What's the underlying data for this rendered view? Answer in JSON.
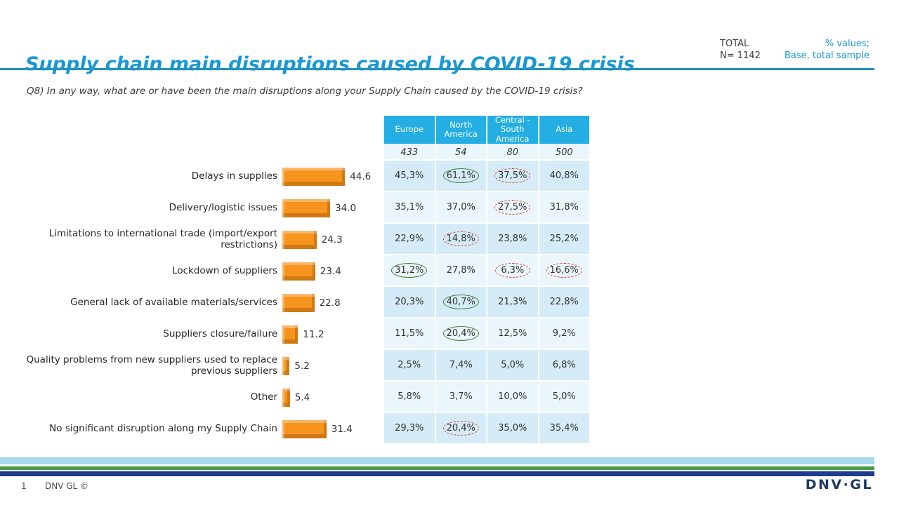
{
  "header": {
    "title": "Supply chain main disruptions caused by COVID-19 crisis",
    "total_label": "TOTAL",
    "total_n": "N= 1142",
    "note_line1": "% values;",
    "note_line2": "Base, total sample"
  },
  "question": "Q8) In any way, what are or have been the main disruptions along your Supply Chain caused by the COVID-19 crisis?",
  "chart_data": {
    "type": "bar",
    "orientation": "horizontal",
    "title": "Supply chain main disruptions caused by COVID-19 crisis",
    "categories": [
      "Delays in supplies",
      "Delivery/logistic issues",
      "Limitations to international trade (import/export restrictions)",
      "Lockdown of suppliers",
      "General lack of available materials/services",
      "Suppliers closure/failure",
      "Quality problems from new suppliers used to replace previous suppliers",
      "Other",
      "No significant disruption along my Supply Chain"
    ],
    "values": [
      44.6,
      34.0,
      24.3,
      23.4,
      22.8,
      11.2,
      5.2,
      5.4,
      31.4
    ],
    "value_labels": [
      "44.6",
      "34.0",
      "24.3",
      "23.4",
      "22.8",
      "11.2",
      "5.2",
      "5.4",
      "31.4"
    ],
    "bar_color": "#F7941E",
    "xlim": [
      0,
      50
    ],
    "grid": false,
    "legend": "none",
    "table": {
      "columns": [
        "Europe",
        "North America",
        "Central - South America",
        "Asia"
      ],
      "base_n": [
        "433",
        "54",
        "80",
        "500"
      ],
      "rows": [
        {
          "cells": [
            "45,3%",
            "61,1%",
            "37,5%",
            "40,8%"
          ],
          "marks": [
            "",
            "green",
            "red",
            ""
          ]
        },
        {
          "cells": [
            "35,1%",
            "37,0%",
            "27,5%",
            "31,8%"
          ],
          "marks": [
            "",
            "",
            "red",
            ""
          ]
        },
        {
          "cells": [
            "22,9%",
            "14,8%",
            "23,8%",
            "25,2%"
          ],
          "marks": [
            "",
            "red",
            "",
            ""
          ]
        },
        {
          "cells": [
            "31,2%",
            "27,8%",
            "6,3%",
            "16,6%"
          ],
          "marks": [
            "green",
            "",
            "red",
            "red"
          ]
        },
        {
          "cells": [
            "20,3%",
            "40,7%",
            "21,3%",
            "22,8%"
          ],
          "marks": [
            "",
            "green",
            "",
            ""
          ]
        },
        {
          "cells": [
            "11,5%",
            "20,4%",
            "12,5%",
            "9,2%"
          ],
          "marks": [
            "",
            "green",
            "",
            ""
          ]
        },
        {
          "cells": [
            "2,5%",
            "7,4%",
            "5,0%",
            "6,8%"
          ],
          "marks": [
            "",
            "",
            "",
            ""
          ]
        },
        {
          "cells": [
            "5,8%",
            "3,7%",
            "10,0%",
            "5,0%"
          ],
          "marks": [
            "",
            "",
            "",
            ""
          ]
        },
        {
          "cells": [
            "29,3%",
            "20,4%",
            "35,0%",
            "35,4%"
          ],
          "marks": [
            "",
            "red",
            "",
            ""
          ]
        }
      ],
      "header_bg": "#25AEE4",
      "band_color_a": "#D5ECF8",
      "band_color_b": "#EAF6FC",
      "base_bg": "#EAF6FC",
      "mark_colors": {
        "green": "#3E7D32",
        "red": "#E03C31"
      }
    }
  },
  "footer": {
    "page_number": "1",
    "brand": "DNV GL ©",
    "logo": "DNV·GL",
    "stripes": {
      "light_blue": "#A5DAEF",
      "green": "#4C9C45",
      "navy": "#1F3C8F"
    }
  }
}
